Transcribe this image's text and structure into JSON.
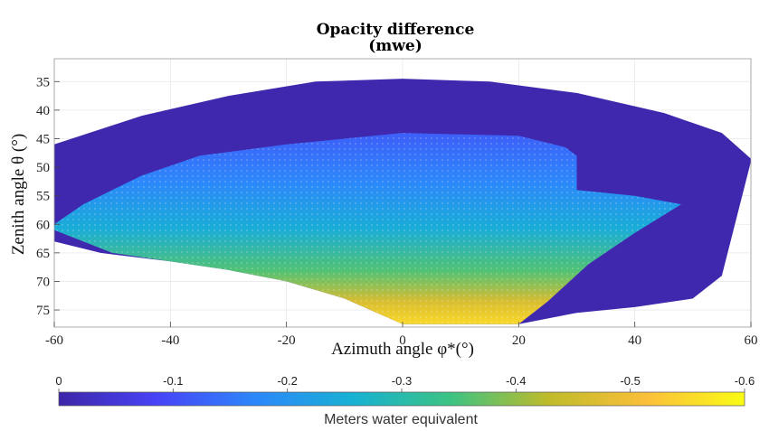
{
  "chart_data": {
    "type": "heatmap",
    "title": "Opacity difference",
    "subtitle": "(mwe)",
    "xlabel": "Azimuth angle φ*(°)",
    "ylabel": "Zenith angle θ (°)",
    "xlim": [
      -60,
      60
    ],
    "ylim": [
      31,
      78
    ],
    "y_reversed": true,
    "grid": true,
    "x_ticks": [
      "-60",
      "-40",
      "-20",
      "0",
      "20",
      "40",
      "60"
    ],
    "x_tick_values": [
      -60,
      -40,
      -20,
      0,
      20,
      40,
      60
    ],
    "y_ticks": [
      "35",
      "40",
      "45",
      "50",
      "55",
      "60",
      "65",
      "70",
      "75"
    ],
    "y_tick_values": [
      35,
      40,
      45,
      50,
      55,
      60,
      65,
      70,
      75
    ],
    "colorbar": {
      "label": "Meters water equivalent",
      "placement": "bottom",
      "min": 0,
      "max": -0.6,
      "ticks": [
        "0",
        "-0.1",
        "-0.2",
        "-0.3",
        "-0.4",
        "-0.5",
        "-0.6"
      ],
      "tick_values": [
        0,
        -0.1,
        -0.2,
        -0.3,
        -0.4,
        -0.5,
        -0.6
      ],
      "colormap": [
        "#3e26a8",
        "#4743f6",
        "#2d87fb",
        "#17b1d3",
        "#3cc383",
        "#bfbb2a",
        "#fbbf3a",
        "#f9fb15"
      ]
    },
    "regions": [
      {
        "name": "outer-coverage",
        "value": -0.005,
        "zenith_upper_edge": [
          [
            -60,
            46
          ],
          [
            -45,
            41
          ],
          [
            -30,
            37.5
          ],
          [
            -15,
            35
          ],
          [
            0,
            34.5
          ],
          [
            15,
            35
          ],
          [
            30,
            37
          ],
          [
            45,
            40.5
          ],
          [
            55,
            44
          ],
          [
            60,
            48.5
          ]
        ],
        "zenith_lower_edge": [
          [
            -60,
            63
          ],
          [
            -52,
            65
          ],
          [
            -40,
            66.5
          ],
          [
            -30,
            68
          ],
          [
            -20,
            70
          ],
          [
            -10,
            73
          ],
          [
            0,
            77.5
          ],
          [
            20,
            77.5
          ],
          [
            30,
            75.5
          ],
          [
            40,
            74.5
          ],
          [
            50,
            73
          ],
          [
            55,
            69
          ],
          [
            60,
            49
          ]
        ]
      },
      {
        "name": "inner-difference",
        "value_range": [
          -0.12,
          -0.55
        ],
        "zenith_upper_edge": [
          [
            -60,
            60
          ],
          [
            -55,
            56.5
          ],
          [
            -45,
            51.5
          ],
          [
            -35,
            48
          ],
          [
            -20,
            46
          ],
          [
            0,
            44
          ],
          [
            20,
            44.5
          ],
          [
            28,
            46.5
          ],
          [
            30,
            48
          ],
          [
            30,
            54
          ],
          [
            40,
            55
          ],
          [
            48,
            56.5
          ]
        ],
        "zenith_lower_edge": [
          [
            -60,
            61
          ],
          [
            -50,
            65
          ],
          [
            -40,
            66.5
          ],
          [
            -30,
            68
          ],
          [
            -20,
            70
          ],
          [
            -10,
            73
          ],
          [
            0,
            77.5
          ],
          [
            20,
            77.5
          ],
          [
            25,
            73.5
          ],
          [
            32,
            67
          ],
          [
            40,
            61.5
          ],
          [
            48,
            56.5
          ]
        ]
      }
    ]
  }
}
